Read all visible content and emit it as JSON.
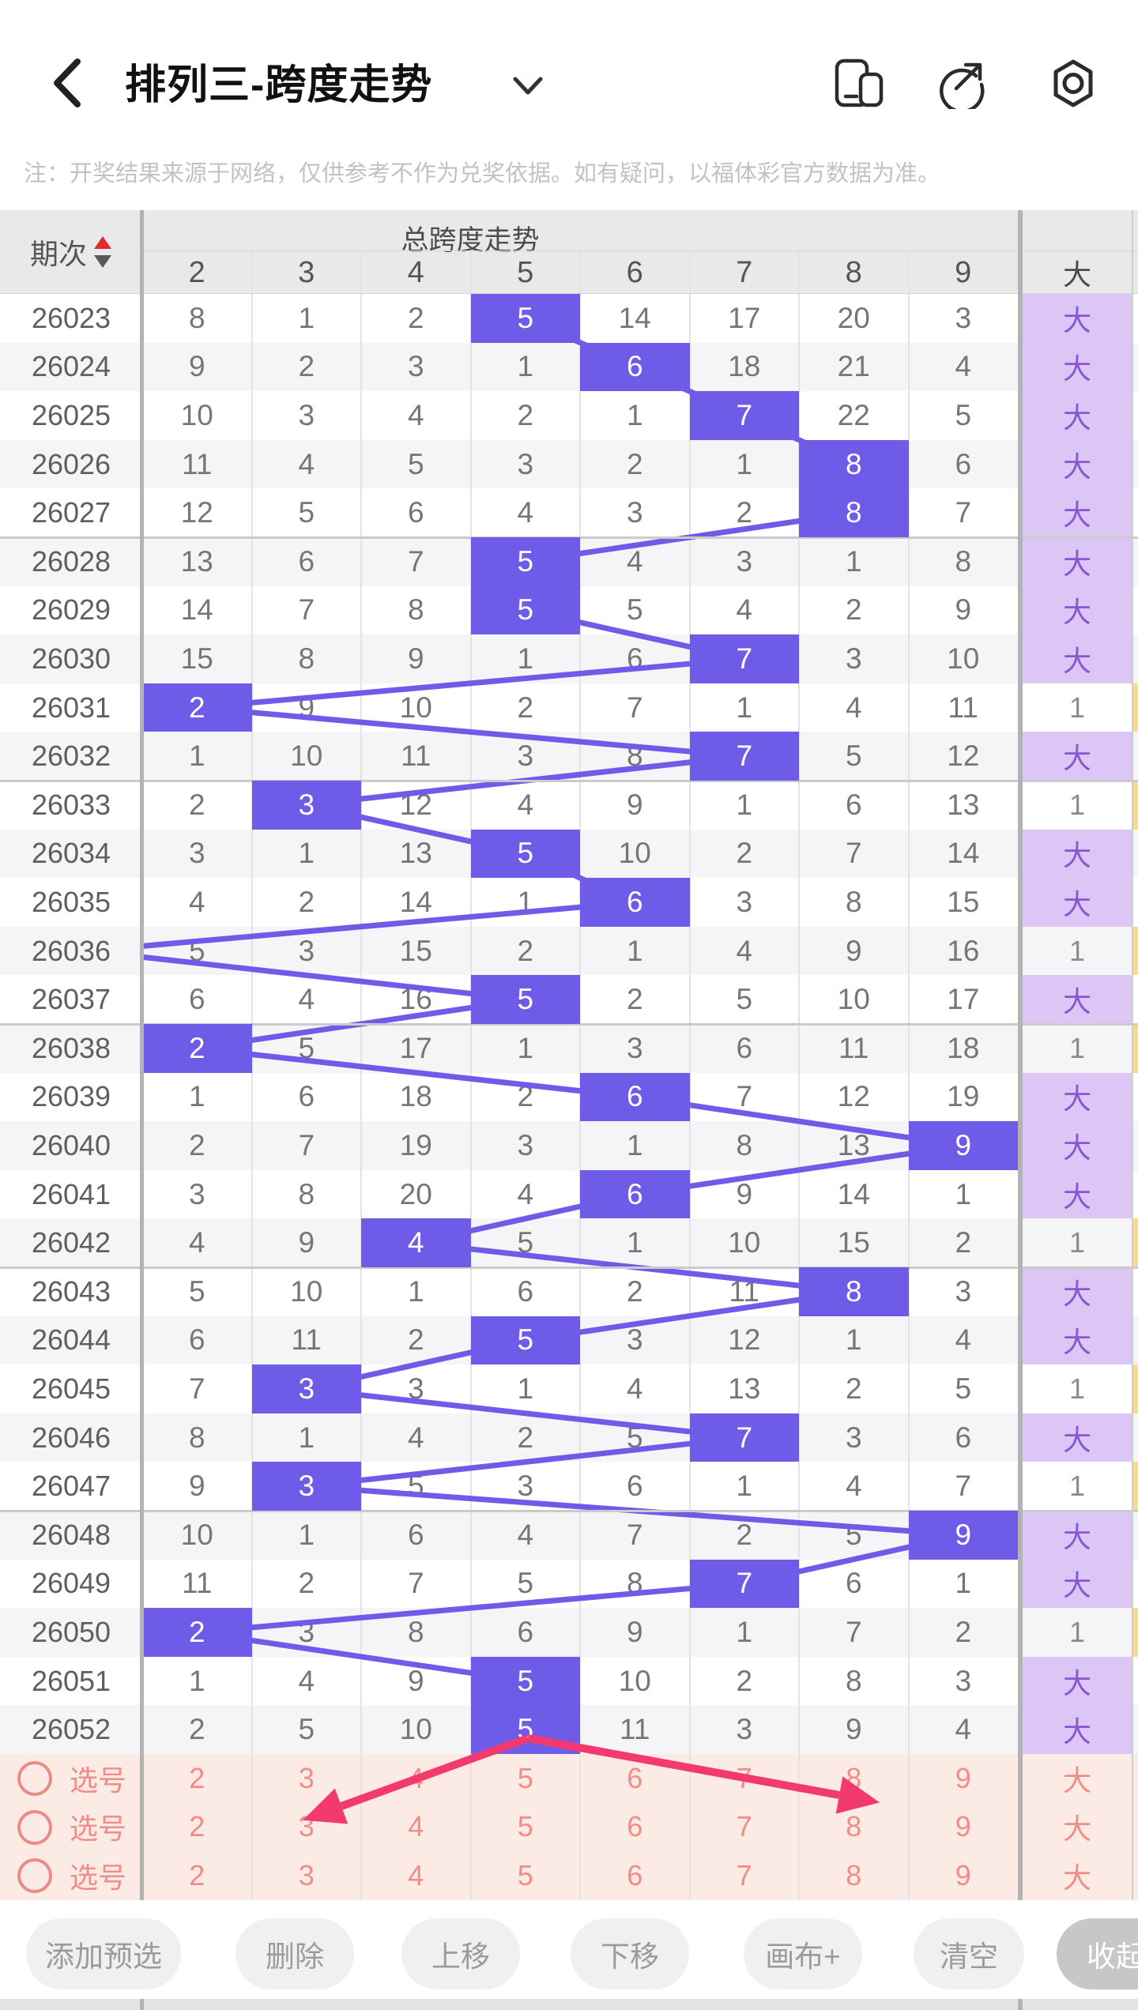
{
  "header": {
    "title": "排列三-跨度走势",
    "icons": [
      "copy-icon",
      "share-icon",
      "settings-nut-icon"
    ]
  },
  "note": "注：开奖结果来源于网络，仅供参考不作为兑奖依据。如有疑问，以福体彩官方数据为准。",
  "table": {
    "period_header": "期次",
    "group_header": "总跨度走势",
    "big_header": "大",
    "columns": [
      "2",
      "3",
      "4",
      "5",
      "6",
      "7",
      "8",
      "9"
    ],
    "rows": [
      {
        "period": "26023",
        "values": [
          8,
          1,
          2,
          5,
          14,
          17,
          20,
          3
        ],
        "span": 5,
        "big": "大"
      },
      {
        "period": "26024",
        "values": [
          9,
          2,
          3,
          1,
          6,
          18,
          21,
          4
        ],
        "span": 6,
        "big": "大"
      },
      {
        "period": "26025",
        "values": [
          10,
          3,
          4,
          2,
          1,
          7,
          22,
          5
        ],
        "span": 7,
        "big": "大"
      },
      {
        "period": "26026",
        "values": [
          11,
          4,
          5,
          3,
          2,
          1,
          8,
          6
        ],
        "span": 8,
        "big": "大"
      },
      {
        "period": "26027",
        "values": [
          12,
          5,
          6,
          4,
          3,
          2,
          8,
          7
        ],
        "span": 8,
        "big": "大"
      },
      {
        "period": "26028",
        "values": [
          13,
          6,
          7,
          5,
          4,
          3,
          1,
          8
        ],
        "span": 5,
        "big": "大"
      },
      {
        "period": "26029",
        "values": [
          14,
          7,
          8,
          5,
          5,
          4,
          2,
          9
        ],
        "span": 5,
        "big": "大"
      },
      {
        "period": "26030",
        "values": [
          15,
          8,
          9,
          1,
          6,
          7,
          3,
          10
        ],
        "span": 7,
        "big": "大"
      },
      {
        "period": "26031",
        "values": [
          2,
          9,
          10,
          2,
          7,
          1,
          4,
          11
        ],
        "span": 2,
        "big": "1"
      },
      {
        "period": "26032",
        "values": [
          1,
          10,
          11,
          3,
          8,
          7,
          5,
          12
        ],
        "span": 7,
        "big": "大"
      },
      {
        "period": "26033",
        "values": [
          2,
          3,
          12,
          4,
          9,
          1,
          6,
          13
        ],
        "span": 3,
        "big": "1"
      },
      {
        "period": "26034",
        "values": [
          3,
          1,
          13,
          5,
          10,
          2,
          7,
          14
        ],
        "span": 5,
        "big": "大"
      },
      {
        "period": "26035",
        "values": [
          4,
          2,
          14,
          1,
          6,
          3,
          8,
          15
        ],
        "span": 6,
        "big": "大"
      },
      {
        "period": "26036",
        "values": [
          5,
          3,
          15,
          2,
          1,
          4,
          9,
          16
        ],
        "span": 1,
        "big": "1"
      },
      {
        "period": "26037",
        "values": [
          6,
          4,
          16,
          5,
          2,
          5,
          10,
          17
        ],
        "span": 5,
        "big": "大"
      },
      {
        "period": "26038",
        "values": [
          2,
          5,
          17,
          1,
          3,
          6,
          11,
          18
        ],
        "span": 2,
        "big": "1"
      },
      {
        "period": "26039",
        "values": [
          1,
          6,
          18,
          2,
          6,
          7,
          12,
          19
        ],
        "span": 6,
        "big": "大"
      },
      {
        "period": "26040",
        "values": [
          2,
          7,
          19,
          3,
          1,
          8,
          13,
          9
        ],
        "span": 9,
        "big": "大"
      },
      {
        "period": "26041",
        "values": [
          3,
          8,
          20,
          4,
          6,
          9,
          14,
          1
        ],
        "span": 6,
        "big": "大"
      },
      {
        "period": "26042",
        "values": [
          4,
          9,
          4,
          5,
          1,
          10,
          15,
          2
        ],
        "span": 4,
        "big": "1"
      },
      {
        "period": "26043",
        "values": [
          5,
          10,
          1,
          6,
          2,
          11,
          8,
          3
        ],
        "span": 8,
        "big": "大"
      },
      {
        "period": "26044",
        "values": [
          6,
          11,
          2,
          5,
          3,
          12,
          1,
          4
        ],
        "span": 5,
        "big": "大"
      },
      {
        "period": "26045",
        "values": [
          7,
          3,
          3,
          1,
          4,
          13,
          2,
          5
        ],
        "span": 3,
        "big": "1"
      },
      {
        "period": "26046",
        "values": [
          8,
          1,
          4,
          2,
          5,
          7,
          3,
          6
        ],
        "span": 7,
        "big": "大"
      },
      {
        "period": "26047",
        "values": [
          9,
          3,
          5,
          3,
          6,
          1,
          4,
          7
        ],
        "span": 3,
        "big": "1"
      },
      {
        "period": "26048",
        "values": [
          10,
          1,
          6,
          4,
          7,
          2,
          5,
          9
        ],
        "span": 9,
        "big": "大"
      },
      {
        "period": "26049",
        "values": [
          11,
          2,
          7,
          5,
          8,
          7,
          6,
          1
        ],
        "span": 7,
        "big": "大"
      },
      {
        "period": "26050",
        "values": [
          2,
          3,
          8,
          6,
          9,
          1,
          7,
          2
        ],
        "span": 2,
        "big": "1"
      },
      {
        "period": "26051",
        "values": [
          1,
          4,
          9,
          5,
          10,
          2,
          8,
          3
        ],
        "span": 5,
        "big": "大"
      },
      {
        "period": "26052",
        "values": [
          2,
          5,
          10,
          5,
          11,
          3,
          9,
          4
        ],
        "span": 5,
        "big": "大"
      }
    ],
    "pick_rows": [
      {
        "label": "选号",
        "values": [
          2,
          3,
          4,
          5,
          6,
          7,
          8,
          9
        ],
        "big": "大"
      },
      {
        "label": "选号",
        "values": [
          2,
          3,
          4,
          5,
          6,
          7,
          8,
          9
        ],
        "big": "大"
      },
      {
        "label": "选号",
        "values": [
          2,
          3,
          4,
          5,
          6,
          7,
          8,
          9
        ],
        "big": "大"
      }
    ]
  },
  "toolbar": {
    "buttons": [
      {
        "id": "add-preselect",
        "label": "添加预选"
      },
      {
        "id": "delete",
        "label": "删除"
      },
      {
        "id": "move-up",
        "label": "上移"
      },
      {
        "id": "move-down",
        "label": "下移"
      },
      {
        "id": "canvas-plus",
        "label": "画布+"
      },
      {
        "id": "clear",
        "label": "清空"
      },
      {
        "id": "collapse",
        "label": "收起"
      }
    ]
  },
  "annotation": {
    "arrow_color": "#f23a6e",
    "apex": [
      668,
      2200
    ],
    "left_end": [
      432,
      2286
    ],
    "right_end": [
      1062,
      2272
    ]
  },
  "colors": {
    "trend_purple": "#6e5ce8",
    "big_cell_bg": "#dcc6f6",
    "big_cell_text": "#8a57d2",
    "small_marker_yellow": "#f6dc92",
    "pick_row_bg": "#fcebe4",
    "pick_row_text": "#ef8d86",
    "arrow_pink": "#f23a6e",
    "header_bg": "#e9e9e9",
    "row_stripe": "#f5f5f7"
  }
}
